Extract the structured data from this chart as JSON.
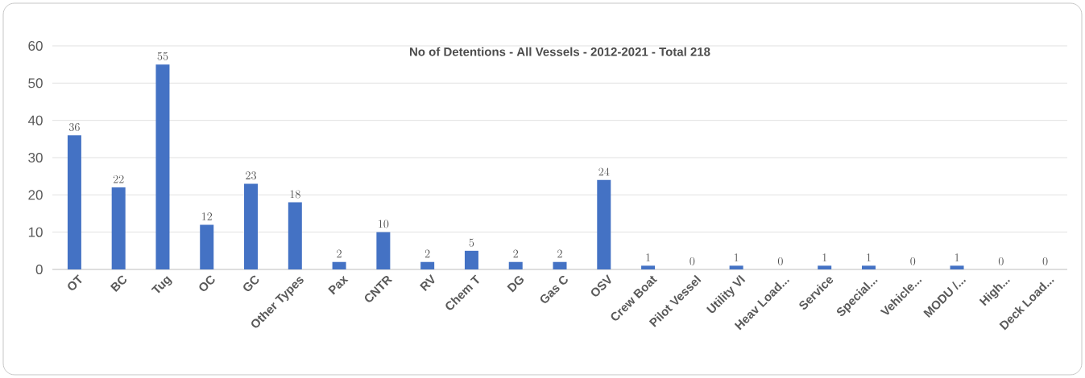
{
  "chart_data": {
    "type": "bar",
    "title": "No of Detentions - All Vessels - 2012-2021 - Total 218",
    "categories": [
      "OT",
      "BC",
      "Tug",
      "OC",
      "GC",
      "Other Types",
      "Pax",
      "CNTR",
      "RV",
      "Chem T",
      "DG",
      "Gas C",
      "OSV",
      "Crew Boat",
      "Pilot Vessel",
      "Utility Vl",
      "Heav Load...",
      "Service",
      "Special...",
      "Vehicle...",
      "MODU /...",
      "High...",
      "Deck Load..."
    ],
    "values": [
      36,
      22,
      55,
      12,
      23,
      18,
      2,
      10,
      2,
      5,
      2,
      2,
      24,
      1,
      0,
      1,
      0,
      1,
      1,
      0,
      1,
      0,
      0
    ],
    "color": "#4472c4",
    "ylim": [
      0,
      60
    ],
    "yticks": [
      0,
      10,
      20,
      30,
      40,
      50,
      60
    ],
    "grid": "y",
    "data_labels": true
  }
}
